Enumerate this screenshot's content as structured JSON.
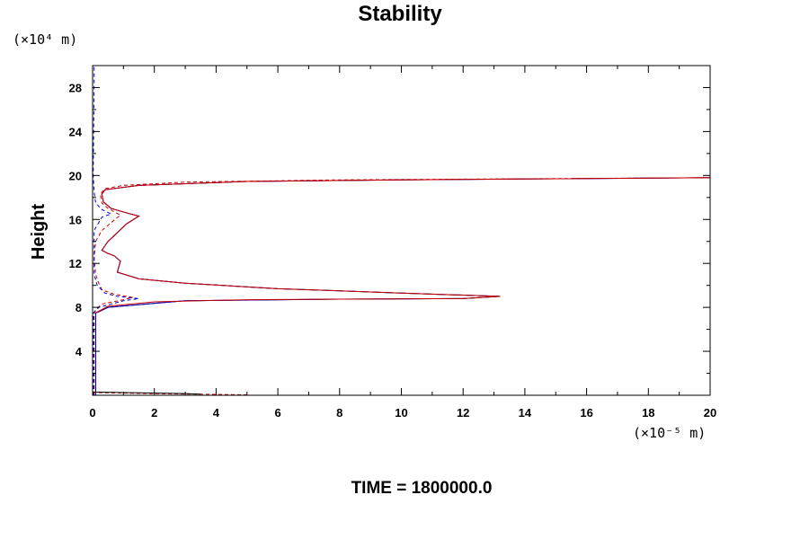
{
  "chart_data": {
    "type": "line",
    "title": "Stability",
    "ylabel": "Height",
    "xlabel": "",
    "y_unit": "(×10⁴ m)",
    "x_unit": "(×10⁻⁵ m)",
    "footer": "TIME = 1800000.0",
    "xlim": [
      0,
      20
    ],
    "ylim": [
      0,
      30
    ],
    "x_ticks": [
      0,
      2,
      4,
      6,
      8,
      10,
      12,
      14,
      16,
      18,
      20
    ],
    "y_ticks": [
      4,
      8,
      12,
      16,
      20,
      24,
      28
    ],
    "grid": false,
    "legend": "none",
    "series": [
      {
        "color": "#000000",
        "style": "solid",
        "points": [
          [
            0.1,
            0
          ],
          [
            0.1,
            0.15
          ],
          [
            0.1,
            7.5
          ],
          [
            0.2,
            7.6
          ],
          [
            0.5,
            8.0
          ],
          [
            3,
            8.6
          ],
          [
            8,
            8.75
          ],
          [
            12,
            8.8
          ],
          [
            13.2,
            9.0
          ],
          [
            10,
            9.3
          ],
          [
            6,
            9.7
          ],
          [
            3,
            10.2
          ],
          [
            1.5,
            10.6
          ],
          [
            0.8,
            11.2
          ],
          [
            0.9,
            12.2
          ],
          [
            0.7,
            12.7
          ],
          [
            0.5,
            12.9
          ],
          [
            0.3,
            13.2
          ],
          [
            0.5,
            14.0
          ],
          [
            0.8,
            14.8
          ],
          [
            1.1,
            15.6
          ],
          [
            1.5,
            16.3
          ],
          [
            1.1,
            16.6
          ],
          [
            0.6,
            17.0
          ],
          [
            0.35,
            17.6
          ],
          [
            0.3,
            18.3
          ],
          [
            0.4,
            18.7
          ],
          [
            1.5,
            19.1
          ],
          [
            5,
            19.45
          ],
          [
            10,
            19.6
          ],
          [
            15,
            19.7
          ],
          [
            20,
            19.8
          ]
        ]
      },
      {
        "color": "#0000cc",
        "style": "solid",
        "points": [
          [
            0.1,
            0
          ],
          [
            0.1,
            0.15
          ],
          [
            0.1,
            7.5
          ],
          [
            0.2,
            7.6
          ],
          [
            0.5,
            8.0
          ],
          [
            3,
            8.6
          ],
          [
            8,
            8.75
          ],
          [
            12,
            8.8
          ],
          [
            13.2,
            9.0
          ],
          [
            10,
            9.3
          ],
          [
            6,
            9.7
          ],
          [
            3,
            10.2
          ],
          [
            1.5,
            10.6
          ],
          [
            0.8,
            11.2
          ],
          [
            0.9,
            12.2
          ],
          [
            0.7,
            12.7
          ],
          [
            0.5,
            12.9
          ],
          [
            0.3,
            13.2
          ],
          [
            0.5,
            14.0
          ],
          [
            0.8,
            14.8
          ],
          [
            1.1,
            15.6
          ],
          [
            1.5,
            16.3
          ],
          [
            1.1,
            16.6
          ],
          [
            0.6,
            17.0
          ],
          [
            0.35,
            17.6
          ],
          [
            0.3,
            18.3
          ],
          [
            0.4,
            18.7
          ],
          [
            1.5,
            19.1
          ],
          [
            5,
            19.45
          ],
          [
            10,
            19.6
          ],
          [
            15,
            19.7
          ],
          [
            20,
            19.8
          ]
        ]
      },
      {
        "color": "#cc0000",
        "style": "solid",
        "points": [
          [
            0.1,
            7.5
          ],
          [
            0.5,
            8.1
          ],
          [
            2,
            8.5
          ],
          [
            5,
            8.7
          ],
          [
            8,
            8.75
          ],
          [
            12,
            8.8
          ],
          [
            13.2,
            9.0
          ],
          [
            10,
            9.3
          ],
          [
            6,
            9.7
          ],
          [
            3,
            10.2
          ],
          [
            1.5,
            10.6
          ],
          [
            0.8,
            11.2
          ],
          [
            0.9,
            12.2
          ],
          [
            0.7,
            12.7
          ],
          [
            0.5,
            12.9
          ],
          [
            0.3,
            13.2
          ],
          [
            0.5,
            14.0
          ],
          [
            0.8,
            14.8
          ],
          [
            1.1,
            15.6
          ],
          [
            1.5,
            16.3
          ],
          [
            1.1,
            16.6
          ],
          [
            0.6,
            17.0
          ],
          [
            0.35,
            17.6
          ],
          [
            0.3,
            18.3
          ],
          [
            0.4,
            18.7
          ],
          [
            1.5,
            19.1
          ],
          [
            5,
            19.45
          ],
          [
            10,
            19.6
          ],
          [
            15,
            19.7
          ],
          [
            20,
            19.8
          ]
        ]
      },
      {
        "color": "#cc0000",
        "style": "dashed",
        "points": [
          [
            0.05,
            0
          ],
          [
            0.05,
            7.4
          ],
          [
            0.1,
            7.8
          ],
          [
            0.3,
            8.3
          ],
          [
            1.0,
            8.7
          ],
          [
            1.3,
            8.9
          ],
          [
            0.7,
            9.2
          ],
          [
            0.3,
            9.6
          ],
          [
            0.2,
            10.2
          ],
          [
            0.1,
            11.0
          ],
          [
            0.05,
            12.5
          ],
          [
            0.1,
            14.0
          ],
          [
            0.3,
            15.0
          ],
          [
            0.9,
            16.4
          ],
          [
            0.5,
            17.0
          ],
          [
            0.3,
            17.5
          ],
          [
            0.25,
            18.3
          ],
          [
            0.4,
            18.8
          ],
          [
            1.0,
            19.1
          ],
          [
            3,
            19.4
          ],
          [
            8,
            19.6
          ],
          [
            14,
            19.7
          ],
          [
            20,
            19.8
          ]
        ]
      },
      {
        "color": "#0000cc",
        "style": "dashed",
        "points": [
          [
            0.03,
            0
          ],
          [
            0.03,
            7.5
          ],
          [
            0.2,
            8.0
          ],
          [
            1.0,
            8.6
          ],
          [
            1.5,
            8.8
          ],
          [
            0.8,
            9.0
          ],
          [
            0.4,
            9.3
          ],
          [
            0.15,
            10.0
          ],
          [
            0.05,
            11.0
          ],
          [
            0.05,
            15.0
          ],
          [
            0.3,
            16.2
          ],
          [
            0.6,
            16.5
          ],
          [
            0.3,
            16.9
          ],
          [
            0.1,
            17.5
          ],
          [
            0.05,
            18.5
          ],
          [
            0.02,
            20
          ],
          [
            0.05,
            28.5
          ],
          [
            0.05,
            30
          ]
        ]
      },
      {
        "color": "#cc0000",
        "style": "dashed",
        "points": [
          [
            0,
            0.25
          ],
          [
            1,
            0.2
          ],
          [
            2,
            0.15
          ],
          [
            3.5,
            0.1
          ],
          [
            5,
            0.04
          ]
        ]
      },
      {
        "color": "#000000",
        "style": "solid",
        "points": [
          [
            0,
            0.3
          ],
          [
            1,
            0.25
          ],
          [
            2,
            0.2
          ],
          [
            3,
            0.15
          ],
          [
            3.5,
            0.1
          ]
        ]
      }
    ]
  }
}
